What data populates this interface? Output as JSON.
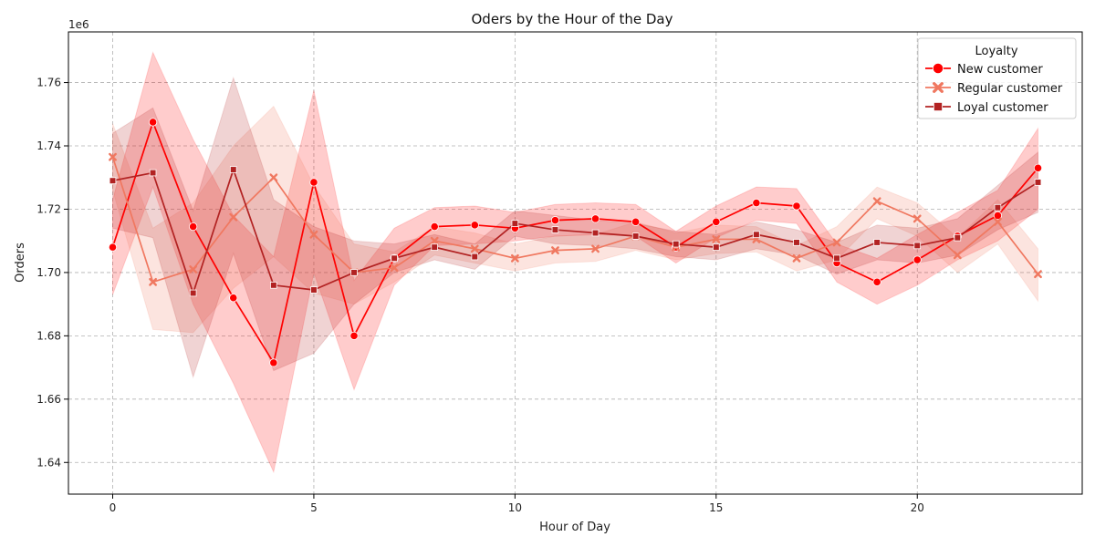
{
  "chart_data": {
    "type": "line",
    "title": "Oders by the Hour of the Day",
    "xlabel": "Hour of Day",
    "ylabel": "Orders",
    "y_scale_label": "1e6",
    "y_scale_factor": 1000000,
    "xlim": [
      -1.1,
      24.1
    ],
    "ylim": [
      1630000,
      1776000
    ],
    "xticks": [
      0,
      5,
      10,
      15,
      20
    ],
    "yticks": [
      1640000,
      1660000,
      1680000,
      1700000,
      1720000,
      1740000,
      1760000
    ],
    "ytick_labels": [
      "1.64",
      "1.66",
      "1.68",
      "1.70",
      "1.72",
      "1.74",
      "1.76"
    ],
    "grid": true,
    "legend": {
      "title": "Loyalty",
      "position": "top-right"
    },
    "x": [
      0,
      1,
      2,
      3,
      4,
      5,
      6,
      7,
      8,
      9,
      10,
      11,
      12,
      13,
      14,
      15,
      16,
      17,
      18,
      19,
      20,
      21,
      22,
      23
    ],
    "series": [
      {
        "name": "New customer",
        "color": "#ff0000",
        "marker": "circle",
        "values": [
          1708000,
          1747500,
          1714500,
          1692000,
          1671500,
          1728500,
          1680000,
          1704500,
          1714500,
          1715000,
          1714000,
          1716500,
          1717000,
          1716000,
          1708000,
          1716000,
          1722000,
          1721000,
          1703000,
          1697000,
          1704000,
          1711500,
          1718000,
          1733000
        ],
        "lower": [
          1693000,
          1727000,
          1690000,
          1665000,
          1637000,
          1700000,
          1663000,
          1696000,
          1708500,
          1709000,
          1710000,
          1711500,
          1712000,
          1711500,
          1703000,
          1711000,
          1716500,
          1715500,
          1697000,
          1690000,
          1696000,
          1704000,
          1710000,
          1720000
        ],
        "upper": [
          1723000,
          1769500,
          1742000,
          1718000,
          1705000,
          1757500,
          1697500,
          1714000,
          1720500,
          1721000,
          1719000,
          1721500,
          1722000,
          1721500,
          1713000,
          1721000,
          1727000,
          1726500,
          1709000,
          1704500,
          1712000,
          1719000,
          1726000,
          1745500
        ]
      },
      {
        "name": "Regular customer",
        "color": "#f07860",
        "marker": "x",
        "values": [
          1736500,
          1697000,
          1701000,
          1717500,
          1730000,
          1712000,
          1700000,
          1701500,
          1710000,
          1707500,
          1704500,
          1707000,
          1707500,
          1711500,
          1708000,
          1710500,
          1710500,
          1704500,
          1709500,
          1722500,
          1717000,
          1705500,
          1716000,
          1699500
        ],
        "lower": [
          1726000,
          1682000,
          1681000,
          1695000,
          1705000,
          1693500,
          1690000,
          1697000,
          1705500,
          1703000,
          1700500,
          1703000,
          1703500,
          1707000,
          1704000,
          1706000,
          1706500,
          1700500,
          1704000,
          1717000,
          1711500,
          1700000,
          1709000,
          1691000
        ],
        "upper": [
          1747000,
          1714000,
          1722000,
          1740000,
          1752500,
          1727500,
          1709000,
          1706500,
          1714500,
          1712500,
          1709000,
          1711500,
          1712000,
          1716000,
          1712500,
          1715000,
          1714500,
          1708500,
          1714500,
          1727000,
          1722000,
          1711000,
          1723000,
          1707500
        ]
      },
      {
        "name": "Loyal customer",
        "color": "#b22222",
        "marker": "square",
        "values": [
          1729000,
          1731500,
          1693500,
          1732500,
          1696000,
          1694500,
          1700000,
          1704500,
          1708000,
          1705000,
          1715500,
          1713500,
          1712500,
          1711500,
          1709000,
          1708000,
          1712000,
          1709500,
          1704500,
          1709500,
          1708500,
          1711000,
          1720500,
          1728500
        ],
        "lower": [
          1714000,
          1711000,
          1667000,
          1706000,
          1669000,
          1674500,
          1690000,
          1700000,
          1704000,
          1701000,
          1711500,
          1709000,
          1708500,
          1707500,
          1705000,
          1704000,
          1707500,
          1705500,
          1699500,
          1704000,
          1703000,
          1705500,
          1713500,
          1719000
        ],
        "upper": [
          1744000,
          1752000,
          1719500,
          1761500,
          1723000,
          1714500,
          1710000,
          1709000,
          1712000,
          1709000,
          1719500,
          1718000,
          1716500,
          1715500,
          1713000,
          1712000,
          1716000,
          1713500,
          1709500,
          1715000,
          1714000,
          1717000,
          1727500,
          1738000
        ]
      }
    ]
  }
}
